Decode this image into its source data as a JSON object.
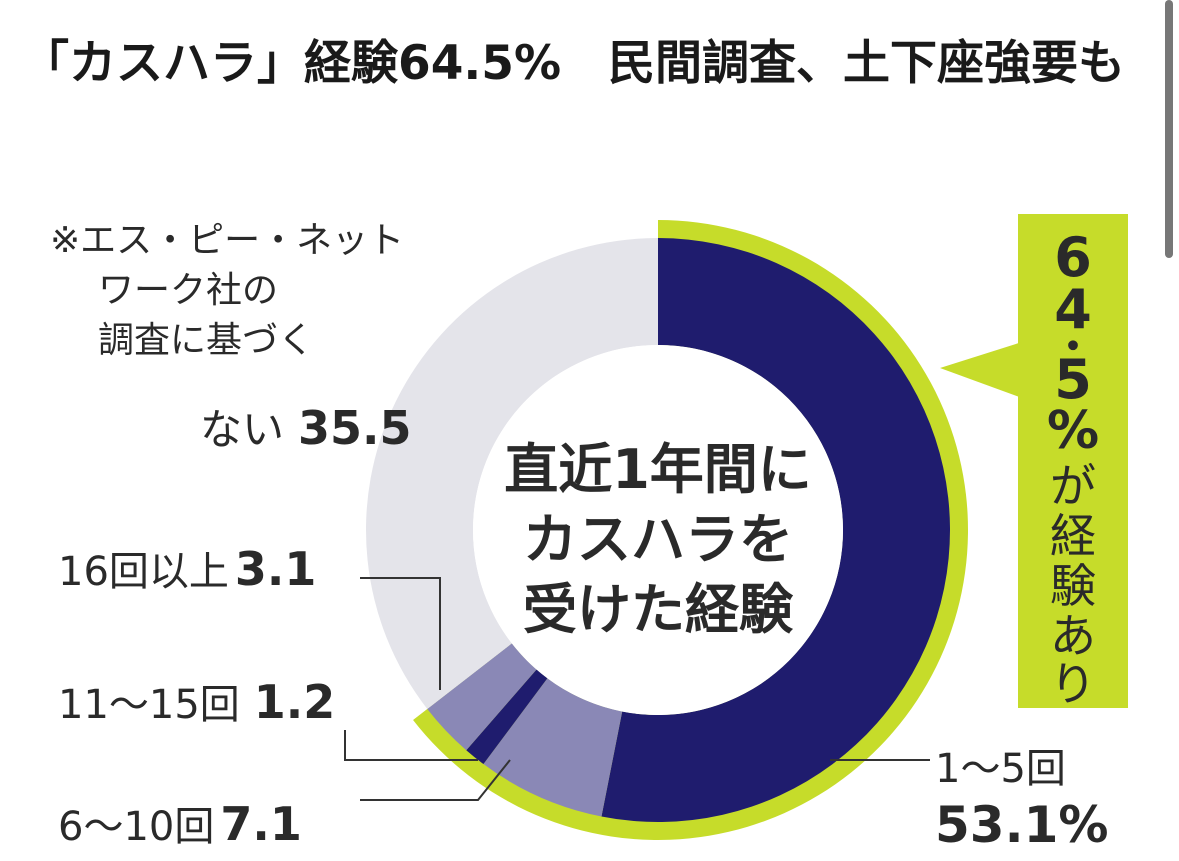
{
  "headline": "「カスハラ」経験64.5%　民間調査、土下座強要も",
  "note": [
    "※エス・ピー・ネット",
    "ワーク社の",
    "調査に基づく"
  ],
  "center_label": [
    "直近1年間に",
    "カスハラを",
    "受けた経験"
  ],
  "callout": {
    "digits": [
      "6",
      "4",
      "・",
      "5",
      "%"
    ],
    "chars": [
      "が",
      "経",
      "験",
      "あ",
      "り"
    ]
  },
  "colors": {
    "dark_navy": "#1f1c6e",
    "light_purple": "#8a88b6",
    "gray": "#e4e4ea",
    "lime": "#c6dc2a",
    "leader": "#333333"
  },
  "chart_data": {
    "type": "pie",
    "variant": "donut",
    "title": "直近1年間にカスハラを受けた経験",
    "unit": "%",
    "slices": [
      {
        "label": "1～5回",
        "value": 53.1,
        "value_text": "53.1%",
        "color": "#1f1c6e"
      },
      {
        "label": "6～10回",
        "value": 7.1,
        "value_text": "7.1",
        "color": "#8a88b6"
      },
      {
        "label": "11～15回",
        "value": 1.2,
        "value_text": "1.2",
        "color": "#1f1c6e"
      },
      {
        "label": "16回以上",
        "value": 3.1,
        "value_text": "3.1",
        "color": "#8a88b6"
      },
      {
        "label": "ない",
        "value": 35.5,
        "value_text": "35.5",
        "color": "#e4e4ea"
      }
    ],
    "experienced_total": 64.5
  }
}
